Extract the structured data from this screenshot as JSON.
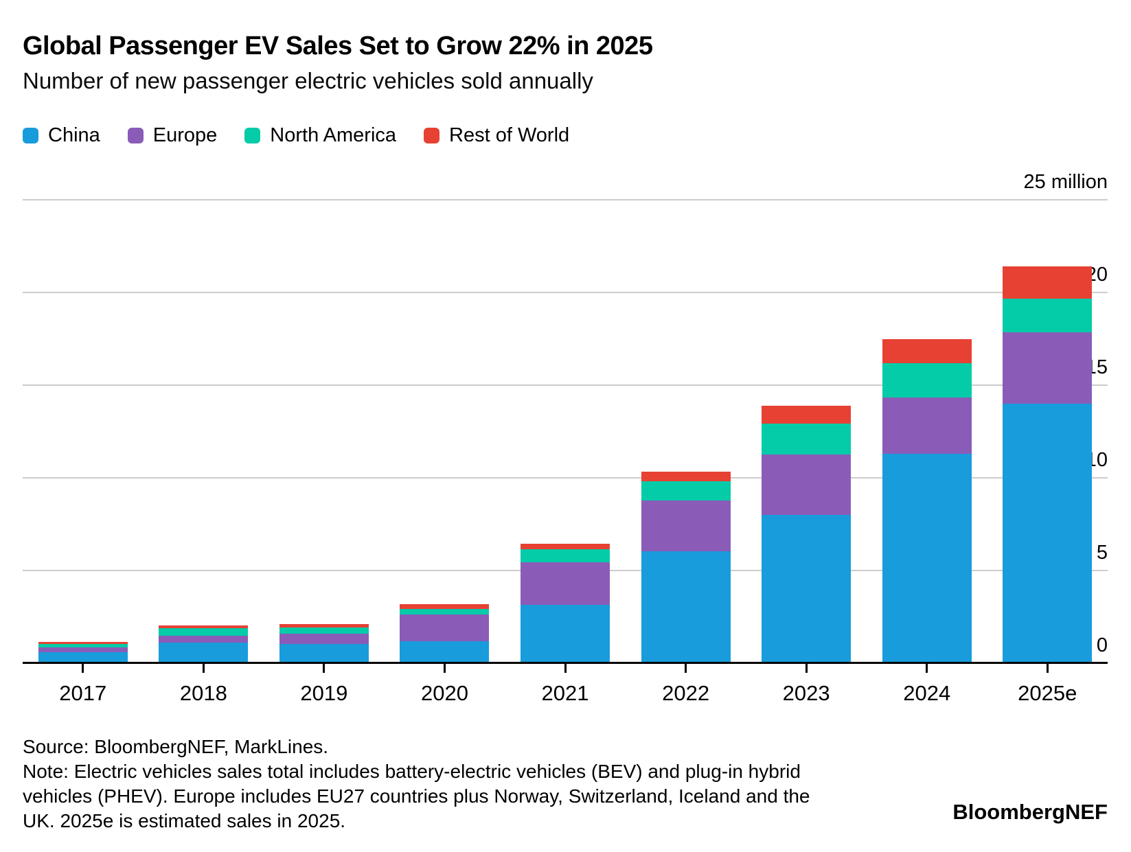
{
  "header": {
    "title": "Global Passenger EV Sales Set to Grow 22% in 2025",
    "subtitle": "Number of new passenger electric vehicles sold annually"
  },
  "legend": [
    {
      "label": "China",
      "color": "#189CDB"
    },
    {
      "label": "Europe",
      "color": "#8A5CB8"
    },
    {
      "label": "North America",
      "color": "#04CBA8"
    },
    {
      "label": "Rest of World",
      "color": "#E74134"
    }
  ],
  "chart_data": {
    "type": "bar",
    "stacked": true,
    "title": "Global Passenger EV Sales Set to Grow 22% in 2025",
    "subtitle": "Number of new passenger electric vehicles sold annually",
    "unit": "million vehicles",
    "xlabel": "",
    "ylabel": "million",
    "grid": "horizontal",
    "legend_position": "top-left",
    "categories": [
      "2017",
      "2018",
      "2019",
      "2020",
      "2021",
      "2022",
      "2023",
      "2024",
      "2025e"
    ],
    "series": [
      {
        "name": "China",
        "color": "#189CDB",
        "values": [
          0.6,
          1.1,
          1.05,
          1.2,
          3.15,
          6.05,
          8.0,
          11.3,
          14.0
        ]
      },
      {
        "name": "Europe",
        "color": "#8A5CB8",
        "values": [
          0.25,
          0.38,
          0.55,
          1.45,
          2.3,
          2.75,
          3.25,
          3.05,
          3.85
        ]
      },
      {
        "name": "North America",
        "color": "#04CBA8",
        "values": [
          0.2,
          0.4,
          0.35,
          0.3,
          0.7,
          1.05,
          1.65,
          1.85,
          1.8
        ]
      },
      {
        "name": "Rest of World",
        "color": "#E74134",
        "values": [
          0.1,
          0.13,
          0.2,
          0.25,
          0.3,
          0.5,
          0.95,
          1.3,
          1.75
        ]
      }
    ],
    "totals": [
      1.15,
      2.0,
      2.15,
      3.2,
      6.45,
      10.35,
      13.85,
      17.5,
      21.4
    ],
    "y_axis": {
      "range": [
        0,
        25
      ],
      "ticks": [
        {
          "value": 25,
          "label": "25 million"
        },
        {
          "value": 20,
          "label": "20"
        },
        {
          "value": 15,
          "label": "15"
        },
        {
          "value": 10,
          "label": "10"
        },
        {
          "value": 5,
          "label": "5"
        },
        {
          "value": 0,
          "label": "0"
        }
      ]
    }
  },
  "footer": {
    "lines": [
      "Source: BloombergNEF, MarkLines.",
      "Note: Electric vehicles sales total includes battery-electric vehicles (BEV) and plug-in hybrid",
      "vehicles (PHEV). Europe includes EU27 countries plus Norway, Switzerland, Iceland and the",
      "UK. 2025e is estimated sales in 2025."
    ],
    "brand": "BloombergNEF"
  }
}
